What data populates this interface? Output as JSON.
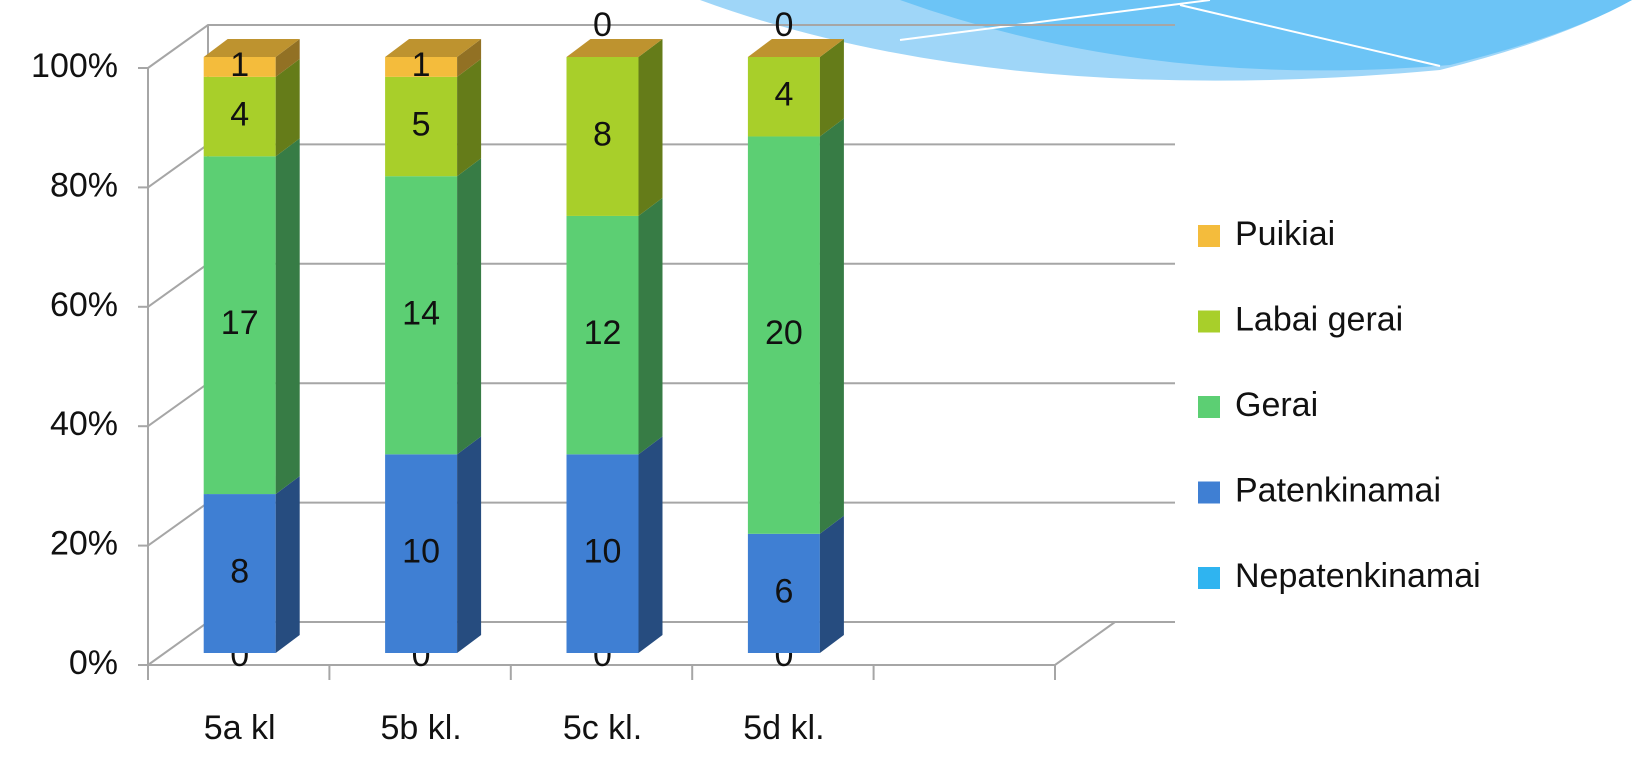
{
  "chart_data": {
    "type": "bar",
    "stack": "percent",
    "categories": [
      "5a kl",
      "5b kl.",
      "5c kl.",
      "5d kl."
    ],
    "series": [
      {
        "name": "Nepatenkinamai",
        "color": "#2fb4f0",
        "values": [
          0,
          0,
          0,
          0
        ]
      },
      {
        "name": "Patenkinamai",
        "color": "#3f7fd3",
        "values": [
          8,
          10,
          10,
          6
        ]
      },
      {
        "name": "Gerai",
        "color": "#5ccf73",
        "values": [
          17,
          14,
          12,
          20
        ]
      },
      {
        "name": "Labai gerai",
        "color": "#a8cf2a",
        "values": [
          4,
          5,
          8,
          4
        ]
      },
      {
        "name": "Puikiai",
        "color": "#f4bc3c",
        "values": [
          1,
          1,
          0,
          0
        ]
      }
    ],
    "ylim": [
      0,
      100
    ],
    "yticks": [
      {
        "value": 0,
        "label": "0%"
      },
      {
        "value": 20,
        "label": "20%"
      },
      {
        "value": 40,
        "label": "40%"
      },
      {
        "value": 60,
        "label": "60%"
      },
      {
        "value": 80,
        "label": "80%"
      },
      {
        "value": 100,
        "label": "100%"
      }
    ],
    "grid": true,
    "legend": "right"
  }
}
